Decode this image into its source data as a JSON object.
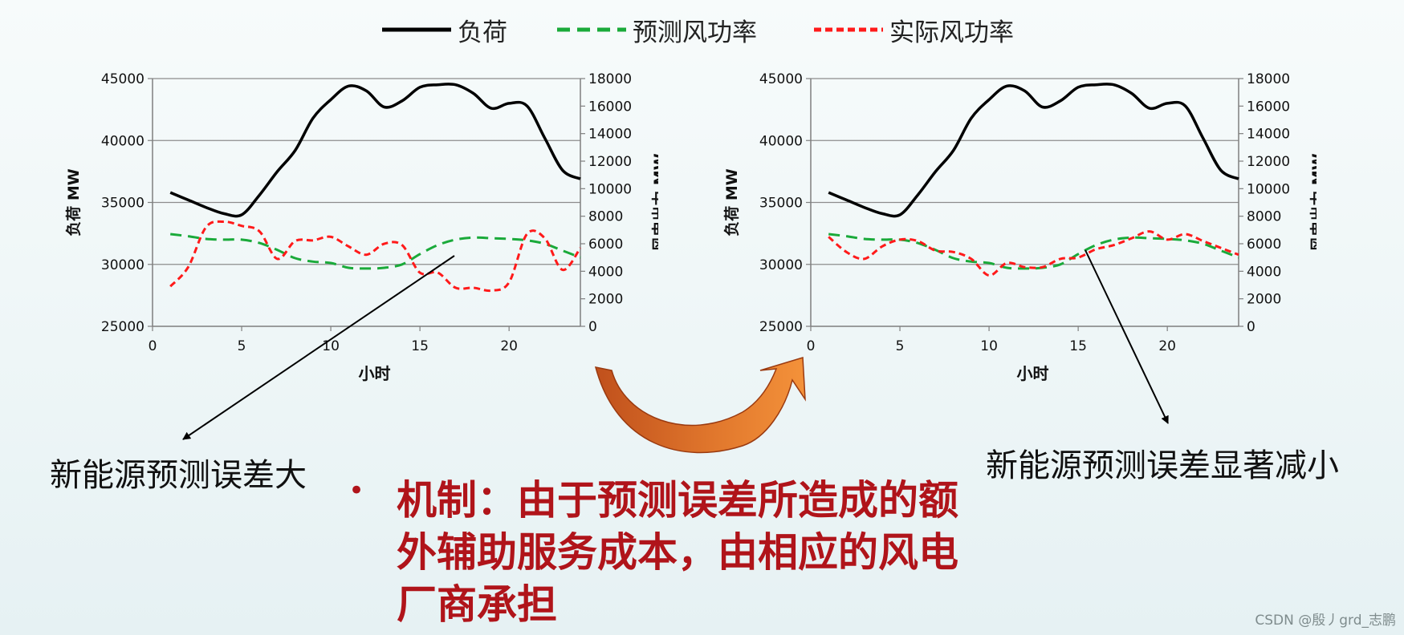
{
  "legend": [
    {
      "label": "负荷",
      "color": "#000000",
      "dash": "solid"
    },
    {
      "label": "预测风功率",
      "color": "#1aaa3a",
      "dash": "dashed"
    },
    {
      "label": "实际风功率",
      "color": "#ff1a1a",
      "dash": "dotted"
    }
  ],
  "chart_data": [
    {
      "type": "line",
      "xlabel": "小时",
      "ylabel_left": "负荷 MW",
      "ylabel_right": "风电出力 MW",
      "xlim": [
        0,
        24
      ],
      "ylim_left": [
        25000,
        45000
      ],
      "ylim_right": [
        0,
        18000
      ],
      "xticks": [
        0,
        5,
        10,
        15,
        20
      ],
      "yticks_left": [
        25000,
        30000,
        35000,
        40000,
        45000
      ],
      "yticks_right": [
        0,
        2000,
        4000,
        6000,
        8000,
        10000,
        12000,
        14000,
        16000,
        18000
      ],
      "grid": true,
      "series": [
        {
          "name": "负荷",
          "axis": "left",
          "color": "#000000",
          "x": [
            1,
            2,
            3,
            4,
            5,
            6,
            7,
            8,
            9,
            10,
            11,
            12,
            13,
            14,
            15,
            16,
            17,
            18,
            19,
            20,
            21,
            22,
            23,
            24
          ],
          "values": [
            35800,
            35200,
            34600,
            34100,
            34000,
            35600,
            37500,
            39200,
            41800,
            43300,
            44400,
            44000,
            42700,
            43200,
            44300,
            44500,
            44500,
            43800,
            42600,
            43000,
            42800,
            40200,
            37600,
            36900
          ]
        },
        {
          "name": "预测风功率",
          "axis": "right",
          "color": "#1aaa3a",
          "x": [
            1,
            2,
            3,
            4,
            5,
            6,
            7,
            8,
            9,
            10,
            11,
            12,
            13,
            14,
            15,
            16,
            17,
            18,
            19,
            20,
            21,
            22,
            23,
            24
          ],
          "values": [
            6700,
            6550,
            6350,
            6300,
            6300,
            6050,
            5550,
            4950,
            4700,
            4600,
            4250,
            4200,
            4250,
            4500,
            5250,
            5900,
            6300,
            6450,
            6400,
            6350,
            6250,
            6000,
            5500,
            5000
          ]
        },
        {
          "name": "实际风功率",
          "axis": "right",
          "color": "#ff1a1a",
          "x": [
            1,
            2,
            3,
            4,
            5,
            6,
            7,
            8,
            9,
            10,
            11,
            12,
            13,
            14,
            15,
            16,
            17,
            18,
            19,
            20,
            21,
            22,
            23,
            24
          ],
          "values": [
            2900,
            4300,
            7200,
            7600,
            7300,
            6900,
            4900,
            6200,
            6250,
            6500,
            5800,
            5200,
            6000,
            5900,
            3900,
            3900,
            2800,
            2800,
            2600,
            3200,
            6700,
            6400,
            4100,
            5700
          ]
        }
      ]
    },
    {
      "type": "line",
      "xlabel": "小时",
      "ylabel_left": "负荷 MW",
      "ylabel_right": "风电出力 MW",
      "xlim": [
        0,
        24
      ],
      "ylim_left": [
        25000,
        45000
      ],
      "ylim_right": [
        0,
        18000
      ],
      "xticks": [
        0,
        5,
        10,
        15,
        20
      ],
      "yticks_left": [
        25000,
        30000,
        35000,
        40000,
        45000
      ],
      "yticks_right": [
        0,
        2000,
        4000,
        6000,
        8000,
        10000,
        12000,
        14000,
        16000,
        18000
      ],
      "grid": true,
      "series": [
        {
          "name": "负荷",
          "axis": "left",
          "color": "#000000",
          "x": [
            1,
            2,
            3,
            4,
            5,
            6,
            7,
            8,
            9,
            10,
            11,
            12,
            13,
            14,
            15,
            16,
            17,
            18,
            19,
            20,
            21,
            22,
            23,
            24
          ],
          "values": [
            35800,
            35200,
            34600,
            34100,
            34000,
            35600,
            37500,
            39200,
            41800,
            43300,
            44400,
            44000,
            42700,
            43200,
            44300,
            44500,
            44500,
            43800,
            42600,
            43000,
            42800,
            40200,
            37600,
            36900
          ]
        },
        {
          "name": "预测风功率",
          "axis": "right",
          "color": "#1aaa3a",
          "x": [
            1,
            2,
            3,
            4,
            5,
            6,
            7,
            8,
            9,
            10,
            11,
            12,
            13,
            14,
            15,
            16,
            17,
            18,
            19,
            20,
            21,
            22,
            23,
            24
          ],
          "values": [
            6700,
            6550,
            6350,
            6300,
            6300,
            6050,
            5550,
            4950,
            4700,
            4600,
            4250,
            4200,
            4250,
            4500,
            5250,
            5900,
            6300,
            6450,
            6400,
            6350,
            6250,
            6000,
            5500,
            5000
          ]
        },
        {
          "name": "实际风功率",
          "axis": "right",
          "color": "#ff1a1a",
          "x": [
            1,
            2,
            3,
            4,
            5,
            6,
            7,
            8,
            9,
            10,
            11,
            12,
            13,
            14,
            15,
            16,
            17,
            18,
            19,
            20,
            21,
            22,
            23,
            24
          ],
          "values": [
            6500,
            5400,
            4900,
            5800,
            6300,
            6200,
            5500,
            5400,
            4900,
            3700,
            4600,
            4300,
            4300,
            4900,
            5000,
            5600,
            5900,
            6400,
            6900,
            6300,
            6700,
            6200,
            5700,
            5200
          ]
        }
      ]
    }
  ],
  "captions": {
    "left": "新能源预测误差大",
    "right": "新能源预测误差显著减小"
  },
  "mechanism": {
    "bullet": "•",
    "text": "机制：由于预测误差所造成的额外辅助服务成本，由相应的风电厂商承担"
  },
  "watermark": "CSDN @殷丿grd_志鹏"
}
